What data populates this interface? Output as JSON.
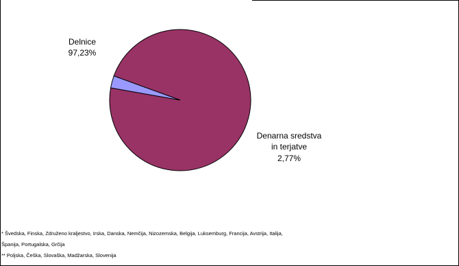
{
  "chart_data": {
    "type": "pie",
    "slices": [
      {
        "label": "Delnice",
        "value_label": "97,23%",
        "value": 97.23,
        "color": "#993366"
      },
      {
        "label": "Denarna sredstva in terjatve",
        "value_label": "2,77%",
        "value": 2.77,
        "color": "#9999ff"
      }
    ],
    "legend": "none"
  },
  "footnotes": [
    "* Švedska, Finska, Združeno kraljestvo, Irska, Danska, Nemčija, Nizozemska, Belgija, Luksemburg, Francija, Avstrija, Italija,",
    "Španija, Portugalska, Grčija",
    "** Poljska, Češka, Slovaška, Madžarska, Slovenija"
  ]
}
